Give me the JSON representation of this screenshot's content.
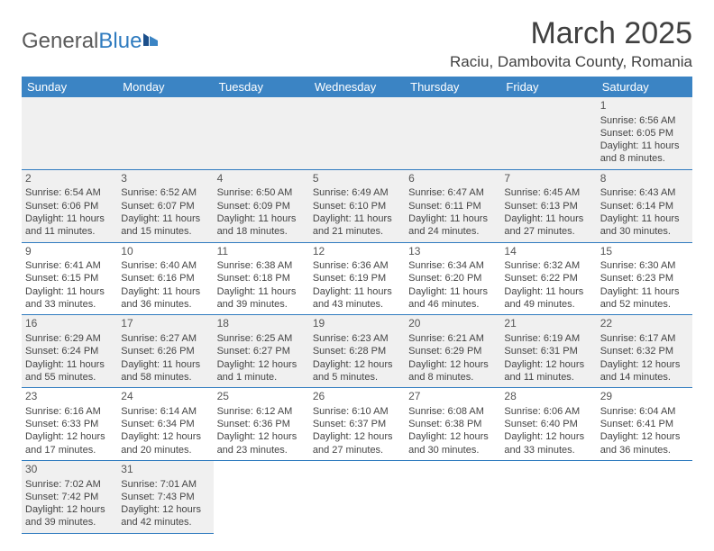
{
  "logo": {
    "text1": "General",
    "text2": "Blue"
  },
  "title": "March 2025",
  "location": "Raciu, Dambovita County, Romania",
  "columns": [
    "Sunday",
    "Monday",
    "Tuesday",
    "Wednesday",
    "Thursday",
    "Friday",
    "Saturday"
  ],
  "colors": {
    "header_bg": "#3b84c4",
    "border": "#2f7bbf",
    "shade": "#f0f0f0",
    "logo_gray": "#5a5a5a",
    "logo_blue": "#2f7bbf"
  },
  "weeks": [
    [
      {
        "n": "",
        "sr": "",
        "ss": "",
        "dl": ""
      },
      {
        "n": "",
        "sr": "",
        "ss": "",
        "dl": ""
      },
      {
        "n": "",
        "sr": "",
        "ss": "",
        "dl": ""
      },
      {
        "n": "",
        "sr": "",
        "ss": "",
        "dl": ""
      },
      {
        "n": "",
        "sr": "",
        "ss": "",
        "dl": ""
      },
      {
        "n": "",
        "sr": "",
        "ss": "",
        "dl": ""
      },
      {
        "n": "1",
        "sr": "Sunrise: 6:56 AM",
        "ss": "Sunset: 6:05 PM",
        "dl": "Daylight: 11 hours and 8 minutes."
      }
    ],
    [
      {
        "n": "2",
        "sr": "Sunrise: 6:54 AM",
        "ss": "Sunset: 6:06 PM",
        "dl": "Daylight: 11 hours and 11 minutes."
      },
      {
        "n": "3",
        "sr": "Sunrise: 6:52 AM",
        "ss": "Sunset: 6:07 PM",
        "dl": "Daylight: 11 hours and 15 minutes."
      },
      {
        "n": "4",
        "sr": "Sunrise: 6:50 AM",
        "ss": "Sunset: 6:09 PM",
        "dl": "Daylight: 11 hours and 18 minutes."
      },
      {
        "n": "5",
        "sr": "Sunrise: 6:49 AM",
        "ss": "Sunset: 6:10 PM",
        "dl": "Daylight: 11 hours and 21 minutes."
      },
      {
        "n": "6",
        "sr": "Sunrise: 6:47 AM",
        "ss": "Sunset: 6:11 PM",
        "dl": "Daylight: 11 hours and 24 minutes."
      },
      {
        "n": "7",
        "sr": "Sunrise: 6:45 AM",
        "ss": "Sunset: 6:13 PM",
        "dl": "Daylight: 11 hours and 27 minutes."
      },
      {
        "n": "8",
        "sr": "Sunrise: 6:43 AM",
        "ss": "Sunset: 6:14 PM",
        "dl": "Daylight: 11 hours and 30 minutes."
      }
    ],
    [
      {
        "n": "9",
        "sr": "Sunrise: 6:41 AM",
        "ss": "Sunset: 6:15 PM",
        "dl": "Daylight: 11 hours and 33 minutes."
      },
      {
        "n": "10",
        "sr": "Sunrise: 6:40 AM",
        "ss": "Sunset: 6:16 PM",
        "dl": "Daylight: 11 hours and 36 minutes."
      },
      {
        "n": "11",
        "sr": "Sunrise: 6:38 AM",
        "ss": "Sunset: 6:18 PM",
        "dl": "Daylight: 11 hours and 39 minutes."
      },
      {
        "n": "12",
        "sr": "Sunrise: 6:36 AM",
        "ss": "Sunset: 6:19 PM",
        "dl": "Daylight: 11 hours and 43 minutes."
      },
      {
        "n": "13",
        "sr": "Sunrise: 6:34 AM",
        "ss": "Sunset: 6:20 PM",
        "dl": "Daylight: 11 hours and 46 minutes."
      },
      {
        "n": "14",
        "sr": "Sunrise: 6:32 AM",
        "ss": "Sunset: 6:22 PM",
        "dl": "Daylight: 11 hours and 49 minutes."
      },
      {
        "n": "15",
        "sr": "Sunrise: 6:30 AM",
        "ss": "Sunset: 6:23 PM",
        "dl": "Daylight: 11 hours and 52 minutes."
      }
    ],
    [
      {
        "n": "16",
        "sr": "Sunrise: 6:29 AM",
        "ss": "Sunset: 6:24 PM",
        "dl": "Daylight: 11 hours and 55 minutes."
      },
      {
        "n": "17",
        "sr": "Sunrise: 6:27 AM",
        "ss": "Sunset: 6:26 PM",
        "dl": "Daylight: 11 hours and 58 minutes."
      },
      {
        "n": "18",
        "sr": "Sunrise: 6:25 AM",
        "ss": "Sunset: 6:27 PM",
        "dl": "Daylight: 12 hours and 1 minute."
      },
      {
        "n": "19",
        "sr": "Sunrise: 6:23 AM",
        "ss": "Sunset: 6:28 PM",
        "dl": "Daylight: 12 hours and 5 minutes."
      },
      {
        "n": "20",
        "sr": "Sunrise: 6:21 AM",
        "ss": "Sunset: 6:29 PM",
        "dl": "Daylight: 12 hours and 8 minutes."
      },
      {
        "n": "21",
        "sr": "Sunrise: 6:19 AM",
        "ss": "Sunset: 6:31 PM",
        "dl": "Daylight: 12 hours and 11 minutes."
      },
      {
        "n": "22",
        "sr": "Sunrise: 6:17 AM",
        "ss": "Sunset: 6:32 PM",
        "dl": "Daylight: 12 hours and 14 minutes."
      }
    ],
    [
      {
        "n": "23",
        "sr": "Sunrise: 6:16 AM",
        "ss": "Sunset: 6:33 PM",
        "dl": "Daylight: 12 hours and 17 minutes."
      },
      {
        "n": "24",
        "sr": "Sunrise: 6:14 AM",
        "ss": "Sunset: 6:34 PM",
        "dl": "Daylight: 12 hours and 20 minutes."
      },
      {
        "n": "25",
        "sr": "Sunrise: 6:12 AM",
        "ss": "Sunset: 6:36 PM",
        "dl": "Daylight: 12 hours and 23 minutes."
      },
      {
        "n": "26",
        "sr": "Sunrise: 6:10 AM",
        "ss": "Sunset: 6:37 PM",
        "dl": "Daylight: 12 hours and 27 minutes."
      },
      {
        "n": "27",
        "sr": "Sunrise: 6:08 AM",
        "ss": "Sunset: 6:38 PM",
        "dl": "Daylight: 12 hours and 30 minutes."
      },
      {
        "n": "28",
        "sr": "Sunrise: 6:06 AM",
        "ss": "Sunset: 6:40 PM",
        "dl": "Daylight: 12 hours and 33 minutes."
      },
      {
        "n": "29",
        "sr": "Sunrise: 6:04 AM",
        "ss": "Sunset: 6:41 PM",
        "dl": "Daylight: 12 hours and 36 minutes."
      }
    ],
    [
      {
        "n": "30",
        "sr": "Sunrise: 7:02 AM",
        "ss": "Sunset: 7:42 PM",
        "dl": "Daylight: 12 hours and 39 minutes."
      },
      {
        "n": "31",
        "sr": "Sunrise: 7:01 AM",
        "ss": "Sunset: 7:43 PM",
        "dl": "Daylight: 12 hours and 42 minutes."
      },
      {
        "n": "",
        "sr": "",
        "ss": "",
        "dl": ""
      },
      {
        "n": "",
        "sr": "",
        "ss": "",
        "dl": ""
      },
      {
        "n": "",
        "sr": "",
        "ss": "",
        "dl": ""
      },
      {
        "n": "",
        "sr": "",
        "ss": "",
        "dl": ""
      },
      {
        "n": "",
        "sr": "",
        "ss": "",
        "dl": ""
      }
    ]
  ]
}
